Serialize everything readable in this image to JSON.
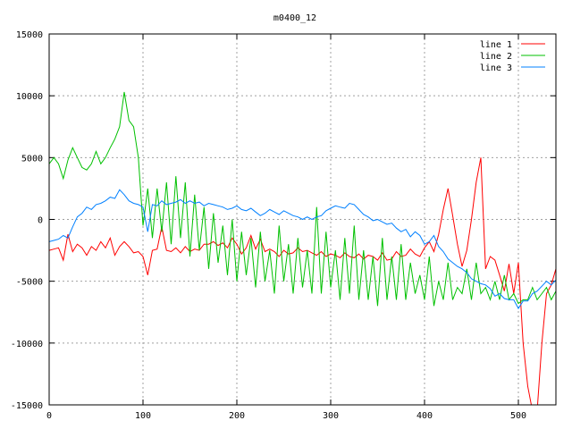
{
  "chart_data": {
    "type": "line",
    "title": "m0400_12",
    "xlabel": "",
    "ylabel": "",
    "xlim": [
      0,
      540
    ],
    "ylim": [
      -15000,
      15000
    ],
    "xticks": [
      0,
      100,
      200,
      300,
      400,
      500
    ],
    "yticks": [
      -15000,
      -10000,
      -5000,
      0,
      5000,
      10000,
      15000
    ],
    "grid": true,
    "legend_position": "top-right",
    "x_start": 0,
    "x_step": 5,
    "series": [
      {
        "name": "line 1",
        "color": "#ff0000",
        "values": [
          -2500,
          -2400,
          -2300,
          -3300,
          -1200,
          -2600,
          -2000,
          -2300,
          -2900,
          -2200,
          -2500,
          -1800,
          -2300,
          -1500,
          -2900,
          -2200,
          -1800,
          -2200,
          -2700,
          -2600,
          -3000,
          -4500,
          -2500,
          -2400,
          -600,
          -2500,
          -2600,
          -2300,
          -2700,
          -2200,
          -2600,
          -2400,
          -2500,
          -2000,
          -2000,
          -1800,
          -2100,
          -1900,
          -2300,
          -1500,
          -2000,
          -2800,
          -2300,
          -1300,
          -2400,
          -1600,
          -2600,
          -2400,
          -2600,
          -3000,
          -2500,
          -2800,
          -2700,
          -2300,
          -2600,
          -2500,
          -2700,
          -2900,
          -2600,
          -3000,
          -2800,
          -2900,
          -3100,
          -2700,
          -3000,
          -3100,
          -2800,
          -3200,
          -2900,
          -3000,
          -3300,
          -2700,
          -3300,
          -3200,
          -2600,
          -3000,
          -2900,
          -2400,
          -2800,
          -3000,
          -2300,
          -1800,
          -2600,
          -1200,
          800,
          2500,
          300,
          -2000,
          -3800,
          -2500,
          0,
          3000,
          5000,
          -4000,
          -3000,
          -3300,
          -4500,
          -5800,
          -3600,
          -6000,
          -3500,
          -10000,
          -13500,
          -15500,
          -15500,
          -10000,
          -6000,
          -5300,
          -4000
        ]
      },
      {
        "name": "line 2",
        "color": "#00c000",
        "values": [
          4500,
          5000,
          4500,
          3300,
          4800,
          5800,
          5000,
          4200,
          4000,
          4500,
          5500,
          4500,
          5000,
          5800,
          6500,
          7500,
          10300,
          8000,
          7500,
          5000,
          -500,
          2500,
          -1500,
          2500,
          -1000,
          3000,
          -2000,
          3500,
          -1500,
          3000,
          -3000,
          2000,
          -2500,
          1000,
          -4000,
          500,
          -3500,
          -500,
          -4500,
          0,
          -5000,
          -1000,
          -4500,
          -1500,
          -5500,
          -1000,
          -5000,
          -2500,
          -6000,
          -500,
          -5000,
          -2000,
          -6000,
          -1500,
          -5500,
          -2500,
          -6000,
          1000,
          -6000,
          -1000,
          -5500,
          -2500,
          -6500,
          -1500,
          -6000,
          -500,
          -6500,
          -2500,
          -6500,
          -3000,
          -7000,
          -1500,
          -6500,
          -3000,
          -6500,
          -2000,
          -6500,
          -3500,
          -6000,
          -4500,
          -6500,
          -3000,
          -7000,
          -5000,
          -6500,
          -3500,
          -6500,
          -5500,
          -6000,
          -4000,
          -6500,
          -3500,
          -6000,
          -5500,
          -6500,
          -5000,
          -6500,
          -4500,
          -6500,
          -6000,
          -6800,
          -6500,
          -6500,
          -5500,
          -6500,
          -6000,
          -5500,
          -6500,
          -5800
        ]
      },
      {
        "name": "line 3",
        "color": "#0080ff",
        "values": [
          -1800,
          -1700,
          -1600,
          -1300,
          -1500,
          -600,
          200,
          500,
          1000,
          800,
          1200,
          1300,
          1500,
          1800,
          1700,
          2400,
          2000,
          1500,
          1300,
          1200,
          1000,
          -1000,
          1200,
          1100,
          1500,
          1200,
          1300,
          1400,
          1600,
          1300,
          1500,
          1300,
          1400,
          1100,
          1300,
          1200,
          1100,
          1000,
          800,
          900,
          1100,
          800,
          700,
          900,
          600,
          300,
          500,
          800,
          600,
          400,
          700,
          500,
          300,
          200,
          0,
          200,
          0,
          200,
          300,
          700,
          900,
          1100,
          1000,
          900,
          1300,
          1200,
          800,
          400,
          200,
          -100,
          0,
          -200,
          -400,
          -300,
          -700,
          -1000,
          -800,
          -1400,
          -1000,
          -1300,
          -2000,
          -1800,
          -1300,
          -2200,
          -2600,
          -3200,
          -3500,
          -3800,
          -4000,
          -4300,
          -4800,
          -5000,
          -5200,
          -5300,
          -5600,
          -6200,
          -6000,
          -6400,
          -6500,
          -6500,
          -7200,
          -6600,
          -6600,
          -6000,
          -5800,
          -5400,
          -5000,
          -5300,
          -4900
        ]
      }
    ]
  }
}
